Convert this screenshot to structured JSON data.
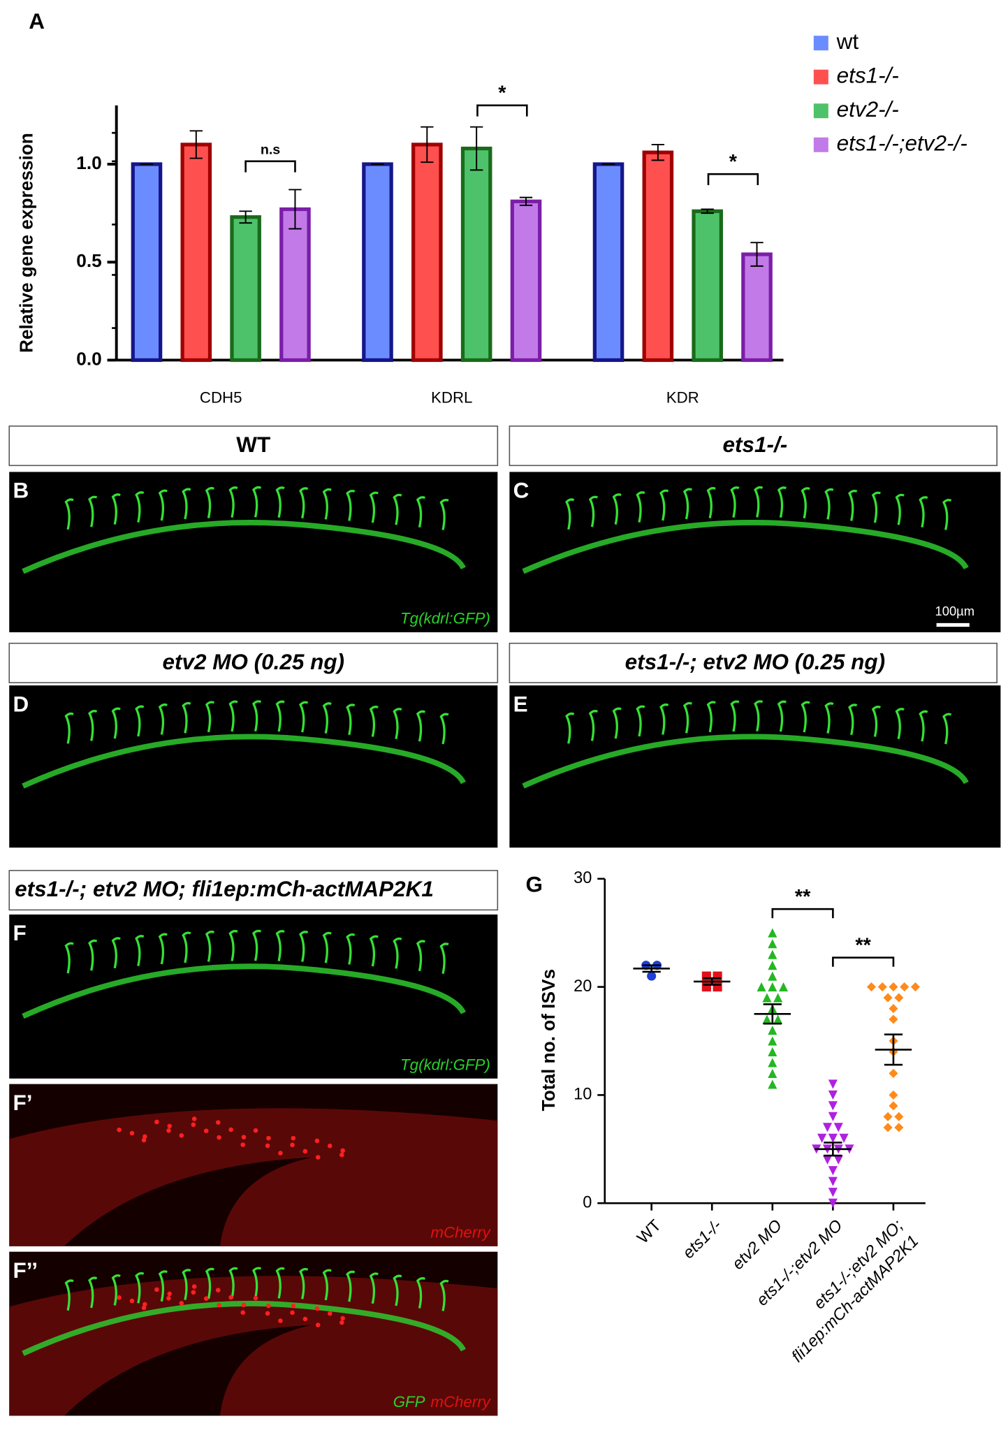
{
  "chart_data": [
    {
      "type": "bar",
      "panel": "A",
      "ylabel": "Relative gene expression",
      "categories": [
        "CDH5",
        "KDRL",
        "KDR"
      ],
      "series": [
        {
          "name": "wt",
          "color": "#6b8cff",
          "edge": "#16168a",
          "values": [
            1.0,
            1.0,
            1.0
          ],
          "errors": [
            0,
            0,
            0
          ]
        },
        {
          "name": "ets1-/-",
          "color": "#ff5050",
          "edge": "#a00000",
          "values": [
            1.1,
            1.1,
            1.06
          ],
          "errors": [
            0.07,
            0.09,
            0.04
          ]
        },
        {
          "name": "etv2-/-",
          "color": "#4ec26a",
          "edge": "#1a6a1a",
          "values": [
            0.73,
            1.08,
            0.76
          ],
          "errors": [
            0.03,
            0.11,
            0.01
          ]
        },
        {
          "name": "ets1-/-;etv2-/-",
          "color": "#c27ae8",
          "edge": "#7a1ea8",
          "values": [
            0.77,
            0.81,
            0.54
          ],
          "errors": [
            0.1,
            0.02,
            0.06
          ]
        }
      ],
      "ylim": [
        0,
        1.3
      ],
      "yticks": [
        {
          "value": 0,
          "label": "0.0"
        },
        {
          "value": 0.5,
          "label": "0.5"
        },
        {
          "value": 1,
          "label": "1.0"
        }
      ],
      "annotations": [
        "n.s",
        "*",
        "*"
      ]
    },
    {
      "type": "strip",
      "panel": "G",
      "ylabel": "Total no. of ISVs",
      "categories": [
        "WT",
        "ets1-/-",
        "etv2 MO",
        "ets1-/-;etv2 MO",
        [
          "ets1-/-;etv2 MO;",
          "fli1ep:mCh-actMAP2K1"
        ]
      ],
      "series": [
        {
          "color": "#1f3fd6",
          "marker": "circle",
          "values": [
            21,
            22,
            22
          ],
          "mean": 21.7,
          "sem": 0.3
        },
        {
          "color": "#e0101a",
          "marker": "square",
          "values": [
            20,
            20,
            21,
            21
          ],
          "mean": 20.5,
          "sem": 0.3
        },
        {
          "color": "#22b822",
          "marker": "triangle-up",
          "values": [
            25,
            24,
            23,
            22,
            21,
            20,
            20,
            20,
            19,
            19,
            18,
            17,
            17,
            16,
            15,
            14,
            13,
            12,
            11
          ],
          "mean": 17.5,
          "sem": 0.9
        },
        {
          "color": "#b020e0",
          "marker": "triangle-down",
          "values": [
            11,
            10,
            9,
            8,
            7,
            7,
            6,
            6,
            6,
            5,
            5,
            5,
            5,
            4,
            4,
            3,
            2,
            1,
            0
          ],
          "mean": 5,
          "sem": 0.6
        },
        {
          "color": "#ff8a1a",
          "marker": "diamond",
          "values": [
            20,
            20,
            20,
            20,
            20,
            19,
            19,
            18,
            17,
            15,
            14,
            12,
            10,
            9,
            8,
            8,
            7,
            7
          ],
          "mean": 14.2,
          "sem": 1.4
        }
      ],
      "ylim": [
        0,
        30
      ],
      "yticks": [
        0,
        10,
        20,
        30
      ],
      "annotations": [
        "**",
        "**"
      ]
    }
  ],
  "images": [
    {
      "label": "B",
      "header": "WT",
      "captions": [
        {
          "text": "Tg(kdrl:GFP)",
          "color": "#2bd12b"
        }
      ]
    },
    {
      "label": "C",
      "header": "ets1-/-",
      "scale": "100µm"
    },
    {
      "label": "D",
      "header": "etv2 MO (0.25 ng)"
    },
    {
      "label": "E",
      "header": "ets1-/-; etv2 MO (0.25 ng)"
    },
    {
      "label": "F",
      "header": "ets1-/-; etv2 MO; fli1ep:mCh-actMAP2K1",
      "captions": [
        {
          "text": "Tg(kdrl:GFP)",
          "color": "#2bd12b"
        }
      ]
    },
    {
      "label": "F’",
      "captions": [
        {
          "text": "mCherry",
          "color": "#e01010"
        }
      ]
    },
    {
      "label": "F’’",
      "captions": [
        {
          "text": "GFP",
          "color": "#2bd12b"
        },
        {
          "text": "mCherry",
          "color": "#e01010"
        }
      ]
    }
  ]
}
